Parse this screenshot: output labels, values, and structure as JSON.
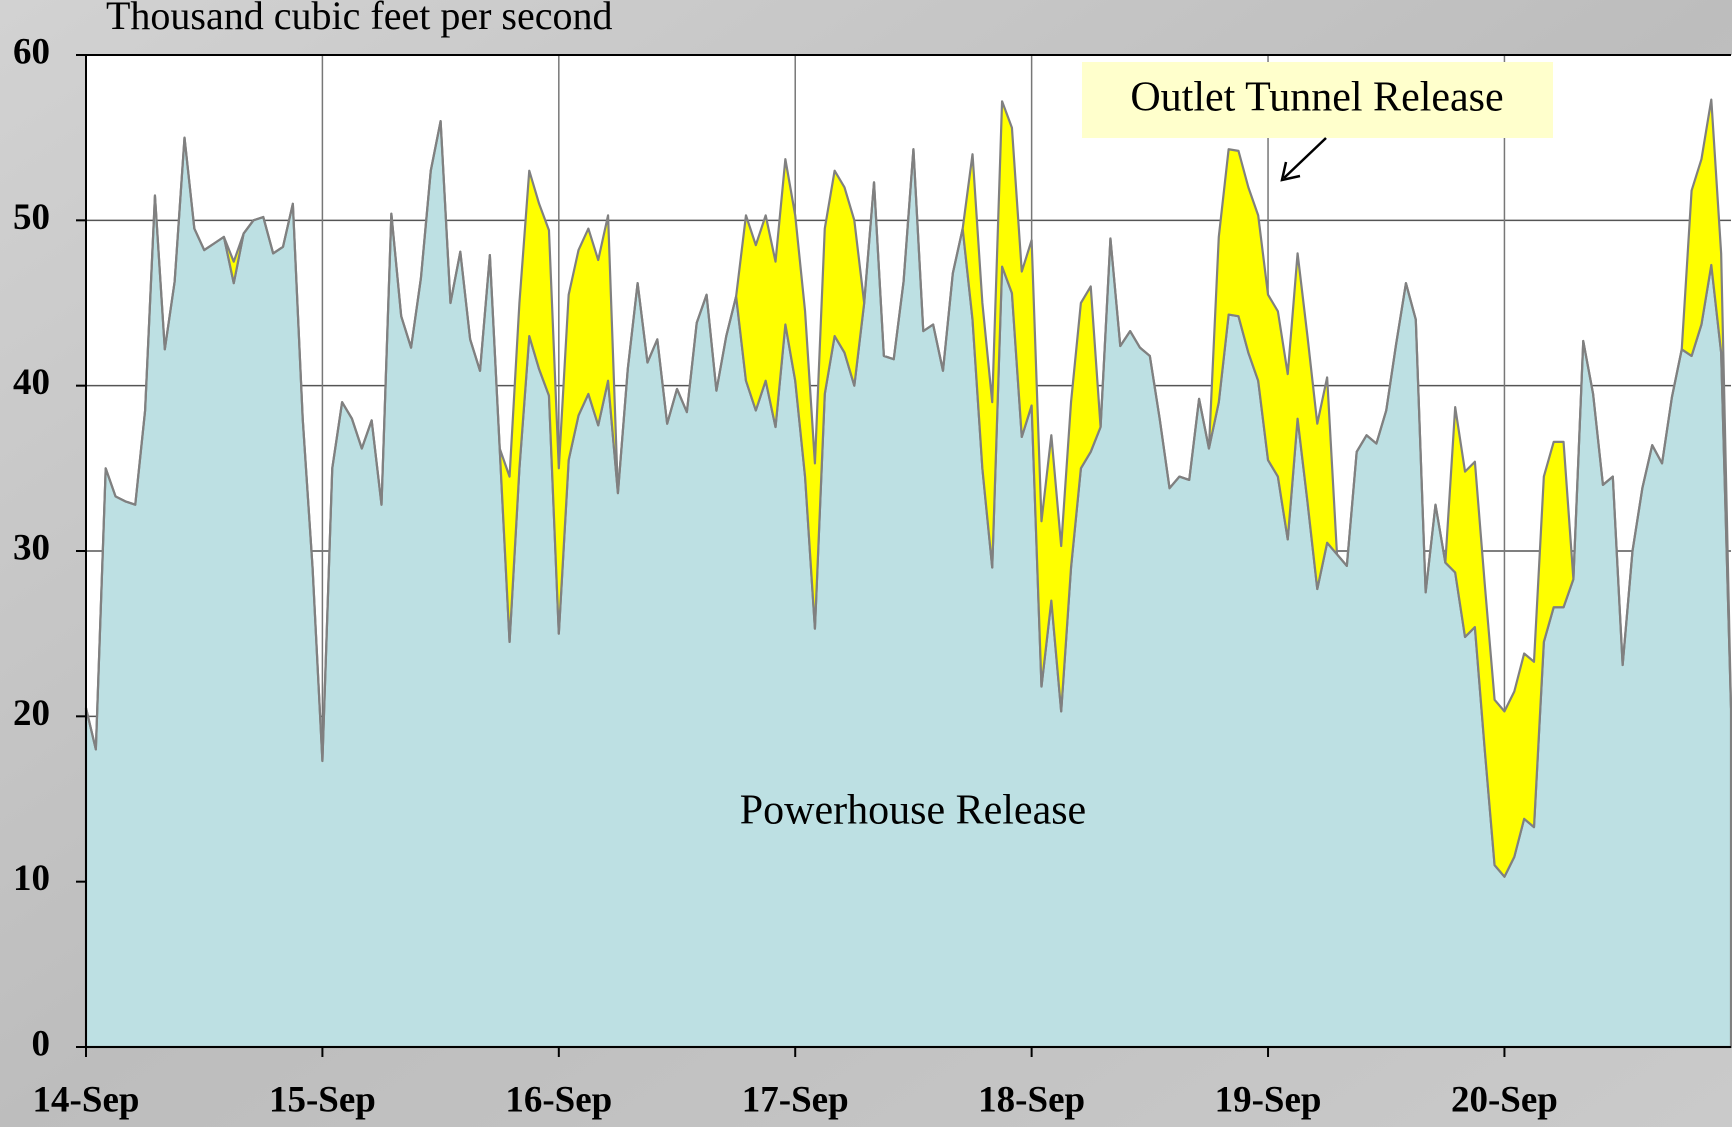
{
  "chart_data": {
    "type": "stacked_area",
    "y_label": "Thousand cubic feet per second",
    "categories": [
      "14-Sep",
      null,
      null,
      null,
      null,
      null,
      null,
      null,
      null,
      null,
      null,
      null,
      null,
      null,
      null,
      null,
      null,
      null,
      null,
      null,
      null,
      null,
      null,
      null,
      "15-Sep",
      null,
      null,
      null,
      null,
      null,
      null,
      null,
      null,
      null,
      null,
      null,
      null,
      null,
      null,
      null,
      null,
      null,
      null,
      null,
      null,
      null,
      null,
      null,
      "16-Sep",
      null,
      null,
      null,
      null,
      null,
      null,
      null,
      null,
      null,
      null,
      null,
      null,
      null,
      null,
      null,
      null,
      null,
      null,
      null,
      null,
      null,
      null,
      null,
      "17-Sep",
      null,
      null,
      null,
      null,
      null,
      null,
      null,
      null,
      null,
      null,
      null,
      null,
      null,
      null,
      null,
      null,
      null,
      null,
      null,
      null,
      null,
      null,
      null,
      "18-Sep",
      null,
      null,
      null,
      null,
      null,
      null,
      null,
      null,
      null,
      null,
      null,
      null,
      null,
      null,
      null,
      null,
      null,
      null,
      null,
      null,
      null,
      null,
      null,
      "19-Sep",
      null,
      null,
      null,
      null,
      null,
      null,
      null,
      null,
      null,
      null,
      null,
      null,
      null,
      null,
      null,
      null,
      null,
      null,
      null,
      null,
      null,
      null,
      null,
      "20-Sep",
      null,
      null,
      null,
      null,
      null,
      null,
      null,
      null,
      null,
      null,
      null,
      null,
      null,
      null,
      null,
      null,
      null,
      null,
      null,
      null,
      null,
      null,
      null
    ],
    "series": [
      {
        "name": "Powerhouse Release",
        "color": "#bde0e3",
        "values": [
          20.5,
          18,
          35,
          33.3,
          33,
          32.8,
          38.5,
          51.5,
          42.2,
          46.3,
          55,
          49.5,
          48.2,
          48.6,
          49,
          46.2,
          49.2,
          50,
          50.2,
          48,
          48.4,
          51,
          38,
          29,
          17.3,
          35,
          39,
          38,
          36.2,
          37.9,
          32.8,
          50.4,
          44.2,
          42.3,
          46.5,
          53,
          56,
          45,
          48.1,
          42.8,
          40.9,
          47.9,
          36.2,
          24.5,
          35,
          43,
          41,
          39.4,
          25,
          35.5,
          38.2,
          39.5,
          37.6,
          40.3,
          33.5,
          41,
          46.2,
          41.4,
          42.8,
          37.7,
          39.8,
          38.4,
          43.8,
          45.5,
          39.7,
          43,
          45.4,
          40.3,
          38.5,
          40.3,
          37.5,
          43.7,
          40.3,
          34.5,
          25.3,
          39.5,
          43,
          42,
          40,
          45,
          52.3,
          41.8,
          41.6,
          46.3,
          54.3,
          43.3,
          43.7,
          40.9,
          46.8,
          49.5,
          44,
          35,
          29,
          47.2,
          45.6,
          36.9,
          38.8,
          21.8,
          27,
          20.3,
          29,
          35,
          36,
          37.5,
          48.9,
          42.4,
          43.3,
          42.3,
          41.8,
          38,
          33.8,
          34.5,
          34.3,
          39.2,
          36.2,
          39,
          44.3,
          44.2,
          42,
          40.3,
          35.5,
          34.5,
          30.7,
          38,
          33,
          27.7,
          30.5,
          29.8,
          29.1,
          36,
          37,
          36.5,
          38.5,
          42.5,
          46.2,
          44,
          27.5,
          32.8,
          29.3,
          28.7,
          24.8,
          25.4,
          18,
          11,
          10.3,
          11.5,
          13.8,
          13.3,
          24.5,
          26.6,
          26.6,
          28.3,
          42.7,
          39.5,
          34,
          34.5,
          23.1,
          30,
          33.8,
          36.4,
          35.3,
          39.3,
          42.2,
          41.8,
          43.7,
          47.3,
          42,
          20.5
        ]
      },
      {
        "name": "Outlet Tunnel Release",
        "color": "#ffff00",
        "values": [
          0,
          0,
          0,
          0,
          0,
          0,
          0,
          0,
          0,
          0,
          0,
          0,
          0,
          0,
          0,
          1.3,
          0,
          0,
          0,
          0,
          0,
          0,
          0,
          0,
          0,
          0,
          0,
          0,
          0,
          0,
          0,
          0,
          0,
          0,
          0,
          0,
          0,
          0,
          0,
          0,
          0,
          0,
          0,
          10,
          10,
          10,
          10,
          10,
          10,
          10,
          10,
          10,
          10,
          10,
          0,
          0,
          0,
          0,
          0,
          0,
          0,
          0,
          0,
          0,
          0,
          0,
          0,
          10,
          10,
          10,
          10,
          10,
          10,
          10,
          10,
          10,
          10,
          10,
          10,
          0,
          0,
          0,
          0,
          0,
          0,
          0,
          0,
          0,
          0,
          0,
          10,
          10,
          10,
          10,
          10,
          10,
          10,
          10,
          10,
          10,
          10,
          10,
          10,
          0,
          0,
          0,
          0,
          0,
          0,
          0,
          0,
          0,
          0,
          0,
          0,
          10,
          10,
          10,
          10,
          10,
          10,
          10,
          10,
          10,
          10,
          10,
          10,
          0,
          0,
          0,
          0,
          0,
          0,
          0,
          0,
          0,
          0,
          0,
          0,
          10,
          10,
          10,
          10,
          10,
          10,
          10,
          10,
          10,
          10,
          10,
          10,
          0,
          0,
          0,
          0,
          0,
          0,
          0,
          0,
          0,
          0,
          0,
          0,
          10,
          10,
          10,
          6,
          0
        ]
      }
    ],
    "ylim": [
      0,
      60
    ],
    "yticks": [
      0,
      10,
      20,
      30,
      40,
      50,
      60
    ],
    "grid": true
  }
}
